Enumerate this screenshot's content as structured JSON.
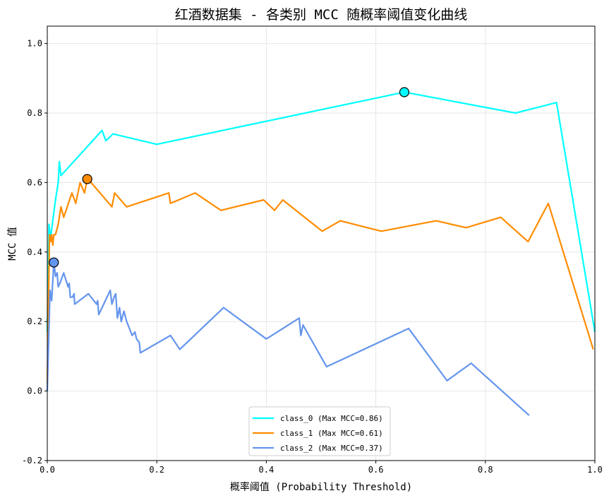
{
  "chart_data": {
    "type": "line",
    "title": "红酒数据集 - 各类别 MCC 随概率阈值变化曲线",
    "xlabel": "概率阈值 (Probability Threshold)",
    "ylabel": "MCC 值",
    "xlim": [
      0,
      1
    ],
    "ylim": [
      -0.2,
      1.05
    ],
    "xticks": [
      0.0,
      0.2,
      0.4,
      0.6,
      0.8,
      1.0
    ],
    "xtick_labels": [
      "0.0",
      "0.2",
      "0.4",
      "0.6",
      "0.8",
      "1.0"
    ],
    "yticks": [
      -0.2,
      0.0,
      0.2,
      0.4,
      0.6,
      0.8,
      1.0
    ],
    "ytick_labels": [
      "-0.2",
      "0.0",
      "0.2",
      "0.4",
      "0.6",
      "0.8",
      "1.0"
    ],
    "grid": true,
    "legend_position": "bottom-center",
    "series": [
      {
        "name": "class_0",
        "legend": "class_0 (Max MCC=0.86)",
        "color": "#00ffff",
        "max_point": [
          0.652,
          0.86
        ],
        "x": [
          0.0,
          0.003,
          0.006,
          0.01,
          0.015,
          0.02,
          0.022,
          0.025,
          0.1,
          0.107,
          0.12,
          0.2,
          0.652,
          0.855,
          0.93,
          1.0
        ],
        "y": [
          0.17,
          0.48,
          0.44,
          0.49,
          0.55,
          0.6,
          0.66,
          0.62,
          0.75,
          0.72,
          0.74,
          0.71,
          0.86,
          0.8,
          0.83,
          0.17
        ]
      },
      {
        "name": "class_1",
        "legend": "class_1 (Max MCC=0.61)",
        "color": "#ff8c00",
        "max_point": [
          0.073,
          0.61
        ],
        "x": [
          0.0,
          0.004,
          0.006,
          0.008,
          0.01,
          0.012,
          0.015,
          0.02,
          0.025,
          0.03,
          0.045,
          0.052,
          0.06,
          0.068,
          0.073,
          0.08,
          0.118,
          0.123,
          0.145,
          0.222,
          0.225,
          0.27,
          0.317,
          0.395,
          0.415,
          0.43,
          0.502,
          0.535,
          0.61,
          0.71,
          0.765,
          0.828,
          0.878,
          0.915,
          0.997
        ],
        "y": [
          0.02,
          0.45,
          0.43,
          0.45,
          0.42,
          0.45,
          0.45,
          0.48,
          0.53,
          0.5,
          0.57,
          0.54,
          0.6,
          0.57,
          0.61,
          0.6,
          0.53,
          0.57,
          0.53,
          0.57,
          0.54,
          0.57,
          0.52,
          0.55,
          0.52,
          0.55,
          0.46,
          0.49,
          0.46,
          0.49,
          0.47,
          0.5,
          0.43,
          0.54,
          0.12
        ]
      },
      {
        "name": "class_2",
        "legend": "class_2 (Max MCC=0.37)",
        "color": "#6495ed",
        "max_point": [
          0.012,
          0.37
        ],
        "x": [
          0.0,
          0.005,
          0.008,
          0.012,
          0.015,
          0.018,
          0.02,
          0.023,
          0.03,
          0.038,
          0.04,
          0.042,
          0.046,
          0.049,
          0.05,
          0.075,
          0.09,
          0.092,
          0.094,
          0.115,
          0.118,
          0.122,
          0.125,
          0.128,
          0.132,
          0.135,
          0.14,
          0.145,
          0.155,
          0.16,
          0.163,
          0.168,
          0.17,
          0.225,
          0.242,
          0.322,
          0.4,
          0.46,
          0.463,
          0.467,
          0.51,
          0.66,
          0.73,
          0.774,
          0.88
        ],
        "y": [
          0.0,
          0.29,
          0.26,
          0.37,
          0.33,
          0.34,
          0.3,
          0.31,
          0.34,
          0.3,
          0.31,
          0.27,
          0.27,
          0.28,
          0.25,
          0.28,
          0.25,
          0.26,
          0.22,
          0.29,
          0.25,
          0.27,
          0.28,
          0.21,
          0.24,
          0.2,
          0.23,
          0.2,
          0.16,
          0.17,
          0.15,
          0.14,
          0.11,
          0.16,
          0.12,
          0.24,
          0.15,
          0.21,
          0.16,
          0.19,
          0.07,
          0.18,
          0.03,
          0.08,
          -0.07
        ]
      }
    ]
  }
}
